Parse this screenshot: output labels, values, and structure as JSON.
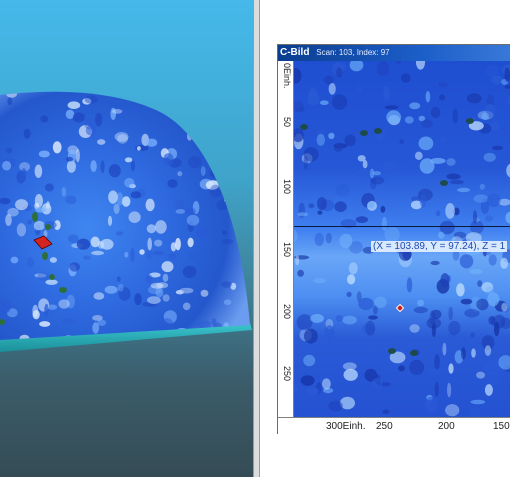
{
  "cbild": {
    "title": "C-Bild",
    "info": "Scan: 103, Index: 97",
    "y_unit": "0Einh.",
    "y_ticks": [
      "50",
      "100",
      "150",
      "200",
      "250"
    ],
    "x_ticks": [
      "300Einh.",
      "250",
      "200",
      "150"
    ],
    "coordinate_readout": "(X = 103.89, Y = 97.24), Z = 1"
  },
  "colors": {
    "scan_blue": "#2a5ad6",
    "scan_light": "#cfe6ff",
    "defect_green": "#2d6f3a",
    "marker_red": "#d4241f",
    "titlebar": "#0b3d8f"
  }
}
